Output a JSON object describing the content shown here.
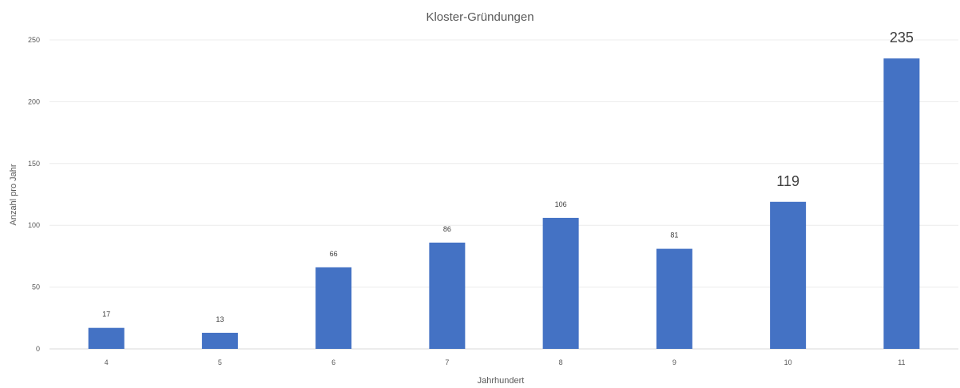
{
  "chart_data": {
    "type": "bar",
    "title": "Kloster-Gründungen",
    "xlabel": "Jahrhundert",
    "ylabel": "Anzahl pro Jahr",
    "categories": [
      "4",
      "5",
      "6",
      "7",
      "8",
      "9",
      "10",
      "11"
    ],
    "values": [
      17,
      13,
      66,
      86,
      106,
      81,
      119,
      235
    ],
    "ylim": [
      0,
      250
    ],
    "yticks": [
      "0",
      "50",
      "100",
      "150",
      "200",
      "250"
    ],
    "grid": true,
    "legend": "none",
    "bar_color": "#4472C4",
    "emphasized_labels": [
      "10",
      "11"
    ]
  }
}
